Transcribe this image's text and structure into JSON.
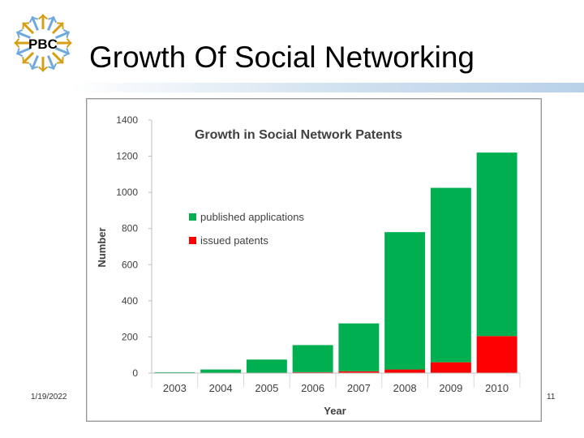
{
  "slide": {
    "title": "Growth Of Social Networking",
    "date": "1/19/2022",
    "page_number": "11",
    "logo_text": "PBC"
  },
  "chart_data": {
    "type": "bar",
    "stacked": true,
    "title": "Growth in Social Network Patents",
    "xlabel": "Year",
    "ylabel": "Number",
    "categories": [
      "2003",
      "2004",
      "2005",
      "2006",
      "2007",
      "2008",
      "2009",
      "2010"
    ],
    "series": [
      {
        "name": "issued patents",
        "color": "#ff0000",
        "values": [
          0,
          0,
          0,
          5,
          10,
          20,
          60,
          205
        ]
      },
      {
        "name": "published applications",
        "color": "#00b050",
        "values": [
          5,
          20,
          75,
          150,
          265,
          760,
          965,
          1015
        ]
      }
    ],
    "ylim": [
      0,
      1400
    ],
    "yticks": [
      0,
      200,
      400,
      600,
      800,
      1000,
      1200,
      1400
    ],
    "grid": false,
    "legend_position": "inside-top-left"
  }
}
